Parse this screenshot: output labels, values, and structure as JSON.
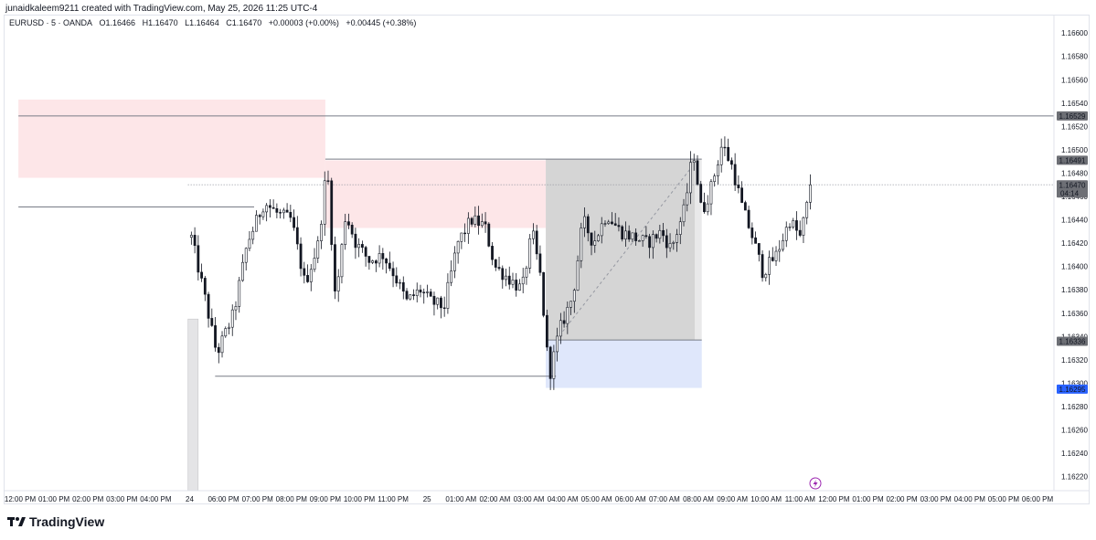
{
  "header": {
    "attribution": "junaidkaleem9211 created with TradingView.com, May 25, 2026 11:25 UTC-4"
  },
  "legend": {
    "symbol": "EURUSD · 5 · OANDA",
    "open": "O1.16466",
    "high": "H1.16470",
    "low": "L1.16464",
    "close": "C1.16470",
    "change": "+0.00003 (+0.00%)",
    "change2": "+0.00445 (+0.38%)"
  },
  "brand": {
    "name": "TradingView",
    "logo": "tradingview-logo-icon"
  },
  "colors": {
    "up": "#131722",
    "down": "#131722",
    "supply_zone": "#fde6e8",
    "demand_zone": "#dfe7fb",
    "position_zone": "#d5d5d5",
    "marker_blue": "#2962ff",
    "marker_grey": "#6d6f75",
    "lightning": "#9c27b0"
  },
  "chart_data": {
    "type": "candlestick",
    "symbol": "EURUSD",
    "timeframe": "5",
    "ylim": [
      1.16208,
      1.16615
    ],
    "y_ticks": [
      1.166,
      1.1658,
      1.1656,
      1.1654,
      1.1652,
      1.165,
      1.1648,
      1.1646,
      1.1644,
      1.1642,
      1.164,
      1.1638,
      1.1636,
      1.1634,
      1.1632,
      1.163,
      1.1628,
      1.1626,
      1.1624,
      1.1622
    ],
    "x_labels": [
      "12:00 PM",
      "01:00 PM",
      "02:00 PM",
      "03:00 PM",
      "04:00 PM",
      "24",
      "06:00 PM",
      "07:00 PM",
      "08:00 PM",
      "09:00 PM",
      "10:00 PM",
      "11:00 PM",
      "25",
      "01:00 AM",
      "02:00 AM",
      "03:00 AM",
      "04:00 AM",
      "05:00 AM",
      "06:00 AM",
      "07:00 AM",
      "08:00 AM",
      "09:00 AM",
      "10:00 AM",
      "11:00 AM",
      "12:00 PM",
      "01:00 PM",
      "02:00 PM",
      "03:00 PM",
      "04:00 PM",
      "05:00 PM",
      "06:00 PM"
    ],
    "price_markers": [
      {
        "label": "1.16529",
        "value": 1.16529,
        "style": "grey"
      },
      {
        "label": "1.16491",
        "value": 1.16491,
        "style": "grey"
      },
      {
        "label": "1.16470",
        "value": 1.1647,
        "style": "grey",
        "sub": "04:14"
      },
      {
        "label": "1.16336",
        "value": 1.16336,
        "style": "grey"
      },
      {
        "label": "1.16295",
        "value": 1.16295,
        "style": "blue"
      }
    ],
    "zones": [
      {
        "kind": "supply",
        "t1": -0.05,
        "t2": 9.0,
        "top": 1.16543,
        "bottom": 1.16476
      },
      {
        "kind": "supply",
        "t1": 9.0,
        "t2": 15.5,
        "top": 1.16491,
        "bottom": 1.16433
      },
      {
        "kind": "position",
        "t1": 15.5,
        "t2": 19.9,
        "top": 1.16492,
        "bottom": 1.16337
      },
      {
        "kind": "position-light",
        "t1": 19.9,
        "t2": 20.1,
        "top": 1.16492,
        "bottom": 1.16337
      },
      {
        "kind": "demand",
        "t1": 15.5,
        "t2": 20.1,
        "top": 1.16337,
        "bottom": 1.16296
      },
      {
        "kind": "volume",
        "t1": 4.95,
        "t2": 5.25,
        "top": 1.16355,
        "bottom": 1.16208
      }
    ],
    "lines": [
      {
        "t1": -0.05,
        "t2": 31.0,
        "v1": 1.16529,
        "v2": 1.16529,
        "style": "solid",
        "color": "#787b86"
      },
      {
        "t1": -0.05,
        "t2": 6.9,
        "v1": 1.16451,
        "v2": 1.16451,
        "style": "solid",
        "color": "#787b86"
      },
      {
        "t1": 9.0,
        "t2": 20.1,
        "v1": 1.16492,
        "v2": 1.16492,
        "style": "solid",
        "color": "#787b86"
      },
      {
        "t1": 15.5,
        "t2": 20.1,
        "v1": 1.16337,
        "v2": 1.16337,
        "style": "solid",
        "color": "#787b86"
      },
      {
        "t1": 5.75,
        "t2": 15.8,
        "v1": 1.16306,
        "v2": 1.16306,
        "style": "solid",
        "color": "#787b86"
      },
      {
        "t1": 15.8,
        "t2": 19.8,
        "v1": 1.16337,
        "v2": 1.16485,
        "style": "dashed",
        "color": "#9598a1"
      },
      {
        "t1": 4.95,
        "t2": 31.0,
        "v1": 1.1647,
        "v2": 1.1647,
        "style": "dotted",
        "color": "#9598a1"
      }
    ],
    "candles_anchors": [
      [
        5.05,
        1.16425
      ],
      [
        5.4,
        1.1638
      ],
      [
        5.8,
        1.16325
      ],
      [
        6.3,
        1.1636
      ],
      [
        6.7,
        1.1642
      ],
      [
        7.2,
        1.16455
      ],
      [
        7.6,
        1.16445
      ],
      [
        8.0,
        1.1644
      ],
      [
        8.4,
        1.16385
      ],
      [
        8.8,
        1.1642
      ],
      [
        9.05,
        1.16488
      ],
      [
        9.3,
        1.1637
      ],
      [
        9.6,
        1.16445
      ],
      [
        9.9,
        1.1642
      ],
      [
        10.3,
        1.16405
      ],
      [
        10.7,
        1.1641
      ],
      [
        11.0,
        1.16395
      ],
      [
        11.4,
        1.1637
      ],
      [
        11.8,
        1.1638
      ],
      [
        12.1,
        1.1637
      ],
      [
        12.5,
        1.16365
      ],
      [
        12.9,
        1.1642
      ],
      [
        13.3,
        1.1644
      ],
      [
        13.7,
        1.16435
      ],
      [
        14.0,
        1.164
      ],
      [
        14.4,
        1.1639
      ],
      [
        14.8,
        1.1638
      ],
      [
        15.1,
        1.1643
      ],
      [
        15.35,
        1.1639
      ],
      [
        15.6,
        1.16305
      ],
      [
        15.9,
        1.16345
      ],
      [
        16.3,
        1.16375
      ],
      [
        16.6,
        1.1644
      ],
      [
        16.9,
        1.1642
      ],
      [
        17.3,
        1.16445
      ],
      [
        17.7,
        1.1643
      ],
      [
        18.1,
        1.16425
      ],
      [
        18.5,
        1.1642
      ],
      [
        18.9,
        1.1643
      ],
      [
        19.2,
        1.16415
      ],
      [
        19.6,
        1.1645
      ],
      [
        19.85,
        1.165
      ],
      [
        20.1,
        1.16445
      ],
      [
        20.4,
        1.1647
      ],
      [
        20.7,
        1.16505
      ],
      [
        21.0,
        1.16485
      ],
      [
        21.3,
        1.1645
      ],
      [
        21.6,
        1.16425
      ],
      [
        21.9,
        1.16395
      ],
      [
        22.3,
        1.1641
      ],
      [
        22.7,
        1.1644
      ],
      [
        23.0,
        1.16425
      ],
      [
        23.3,
        1.16465
      ]
    ],
    "candle_count": 182,
    "last_close": 1.1647
  }
}
